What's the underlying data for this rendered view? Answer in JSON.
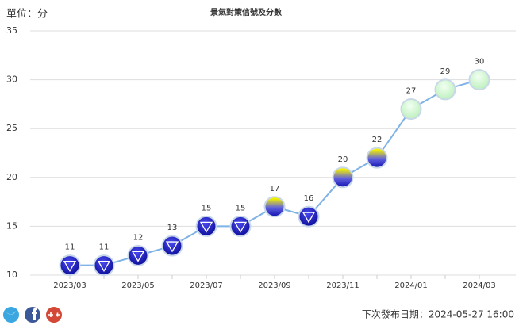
{
  "chart_data": {
    "type": "line",
    "title": "景氣對策信號及分數",
    "unit_label": "單位：分",
    "categories": [
      "2023/03",
      null,
      "2023/05",
      null,
      "2023/07",
      null,
      "2023/09",
      null,
      "2023/11",
      null,
      "2024/01",
      null,
      "2024/03"
    ],
    "values": [
      11,
      11,
      12,
      13,
      15,
      15,
      17,
      16,
      20,
      22,
      27,
      29,
      30
    ],
    "line_color": "#7fb2e5",
    "point_fills": [
      "blue",
      "blue",
      "blue",
      "blue",
      "blue",
      "blue",
      "yellow-blue",
      "blue",
      "yellow-blue",
      "yellow-blue",
      "green",
      "green",
      "green"
    ],
    "ylim": [
      10,
      35
    ],
    "yticks": [
      10,
      15,
      20,
      25,
      30,
      35
    ],
    "grid": true
  },
  "footer": {
    "next_release": "下次發布日期：2024-05-27 16:00"
  }
}
